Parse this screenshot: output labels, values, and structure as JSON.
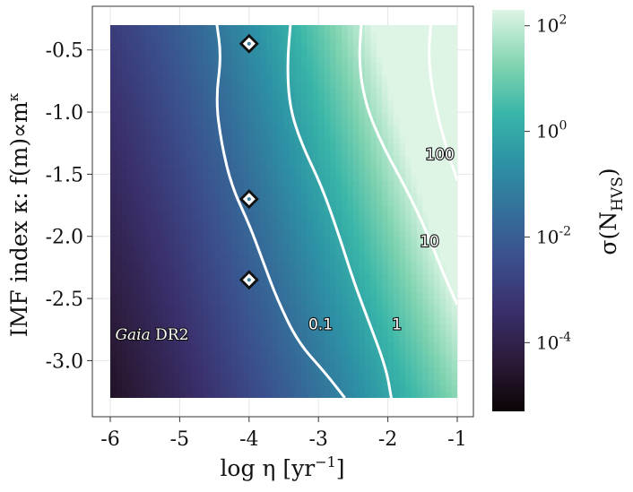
{
  "chart_data": {
    "type": "heatmap",
    "xlabel": "log η [yr",
    "xlabel_sup": "−1",
    "xlabel_end": "]",
    "ylabel": "IMF index κ: f(m)∝m",
    "ylabel_sup": "κ",
    "colorbar_label": "σ(N",
    "colorbar_label_sub": "HVS",
    "colorbar_label_end": ")",
    "xlim": [
      -6,
      -1
    ],
    "ylim": [
      -3.3,
      -0.3
    ],
    "x_ticks": [
      -6,
      -5,
      -4,
      -3,
      -2,
      -1
    ],
    "x_tick_labels": [
      "-6",
      "-5",
      "-4",
      "-3",
      "-2",
      "-1"
    ],
    "y_ticks": [
      -0.5,
      -1.0,
      -1.5,
      -2.0,
      -2.5,
      -3.0
    ],
    "y_tick_labels": [
      "-0.5",
      "-1.0",
      "-1.5",
      "-2.0",
      "-2.5",
      "-3.0"
    ],
    "colorbar_scale": "log",
    "colorbar_range": [
      5e-06,
      200
    ],
    "colorbar_ticks": [
      {
        "base": "10",
        "exp": "2",
        "value": 100
      },
      {
        "base": "10",
        "exp": "0",
        "value": 1
      },
      {
        "base": "10",
        "exp": "-2",
        "value": 0.01
      },
      {
        "base": "10",
        "exp": "-4",
        "value": 0.0001
      }
    ],
    "colormap": "mako",
    "grid": true,
    "contours": [
      {
        "level": "0.1",
        "label_at": [
          -2.97,
          -2.75
        ],
        "points": [
          [
            -4.47,
            -0.27
          ],
          [
            -4.4,
            -0.55
          ],
          [
            -4.48,
            -0.9
          ],
          [
            -4.4,
            -1.25
          ],
          [
            -4.25,
            -1.6
          ],
          [
            -4.0,
            -1.9
          ],
          [
            -3.8,
            -2.2
          ],
          [
            -3.6,
            -2.5
          ],
          [
            -3.3,
            -2.85
          ],
          [
            -2.9,
            -3.1
          ],
          [
            -2.62,
            -3.3
          ]
        ]
      },
      {
        "level": "1",
        "label_at": [
          -1.87,
          -2.75
        ],
        "points": [
          [
            -3.4,
            -0.27
          ],
          [
            -3.45,
            -0.6
          ],
          [
            -3.42,
            -0.95
          ],
          [
            -3.25,
            -1.25
          ],
          [
            -2.95,
            -1.6
          ],
          [
            -2.7,
            -2.0
          ],
          [
            -2.5,
            -2.35
          ],
          [
            -2.3,
            -2.65
          ],
          [
            -2.03,
            -3.05
          ],
          [
            -1.95,
            -3.3
          ]
        ]
      },
      {
        "level": "10",
        "label_at": [
          -1.4,
          -2.08
        ],
        "points": [
          [
            -2.38,
            -0.27
          ],
          [
            -2.42,
            -0.6
          ],
          [
            -2.32,
            -0.95
          ],
          [
            -2.05,
            -1.3
          ],
          [
            -1.75,
            -1.6
          ],
          [
            -1.45,
            -1.95
          ],
          [
            -1.2,
            -2.3
          ],
          [
            -1.0,
            -2.55
          ]
        ]
      },
      {
        "level": "100",
        "label_at": [
          -1.25,
          -1.38
        ],
        "points": [
          [
            -1.38,
            -0.27
          ],
          [
            -1.42,
            -0.6
          ],
          [
            -1.3,
            -1.0
          ],
          [
            -1.15,
            -1.3
          ],
          [
            -1.0,
            -1.55
          ]
        ]
      }
    ],
    "points": [
      {
        "x": -4.0,
        "y": -0.45
      },
      {
        "x": -4.0,
        "y": -1.7
      },
      {
        "x": -4.0,
        "y": -2.35
      }
    ],
    "annotation": {
      "italic": "Gaia",
      "rest": " DR2",
      "at": [
        -5.4,
        -2.83
      ]
    }
  }
}
